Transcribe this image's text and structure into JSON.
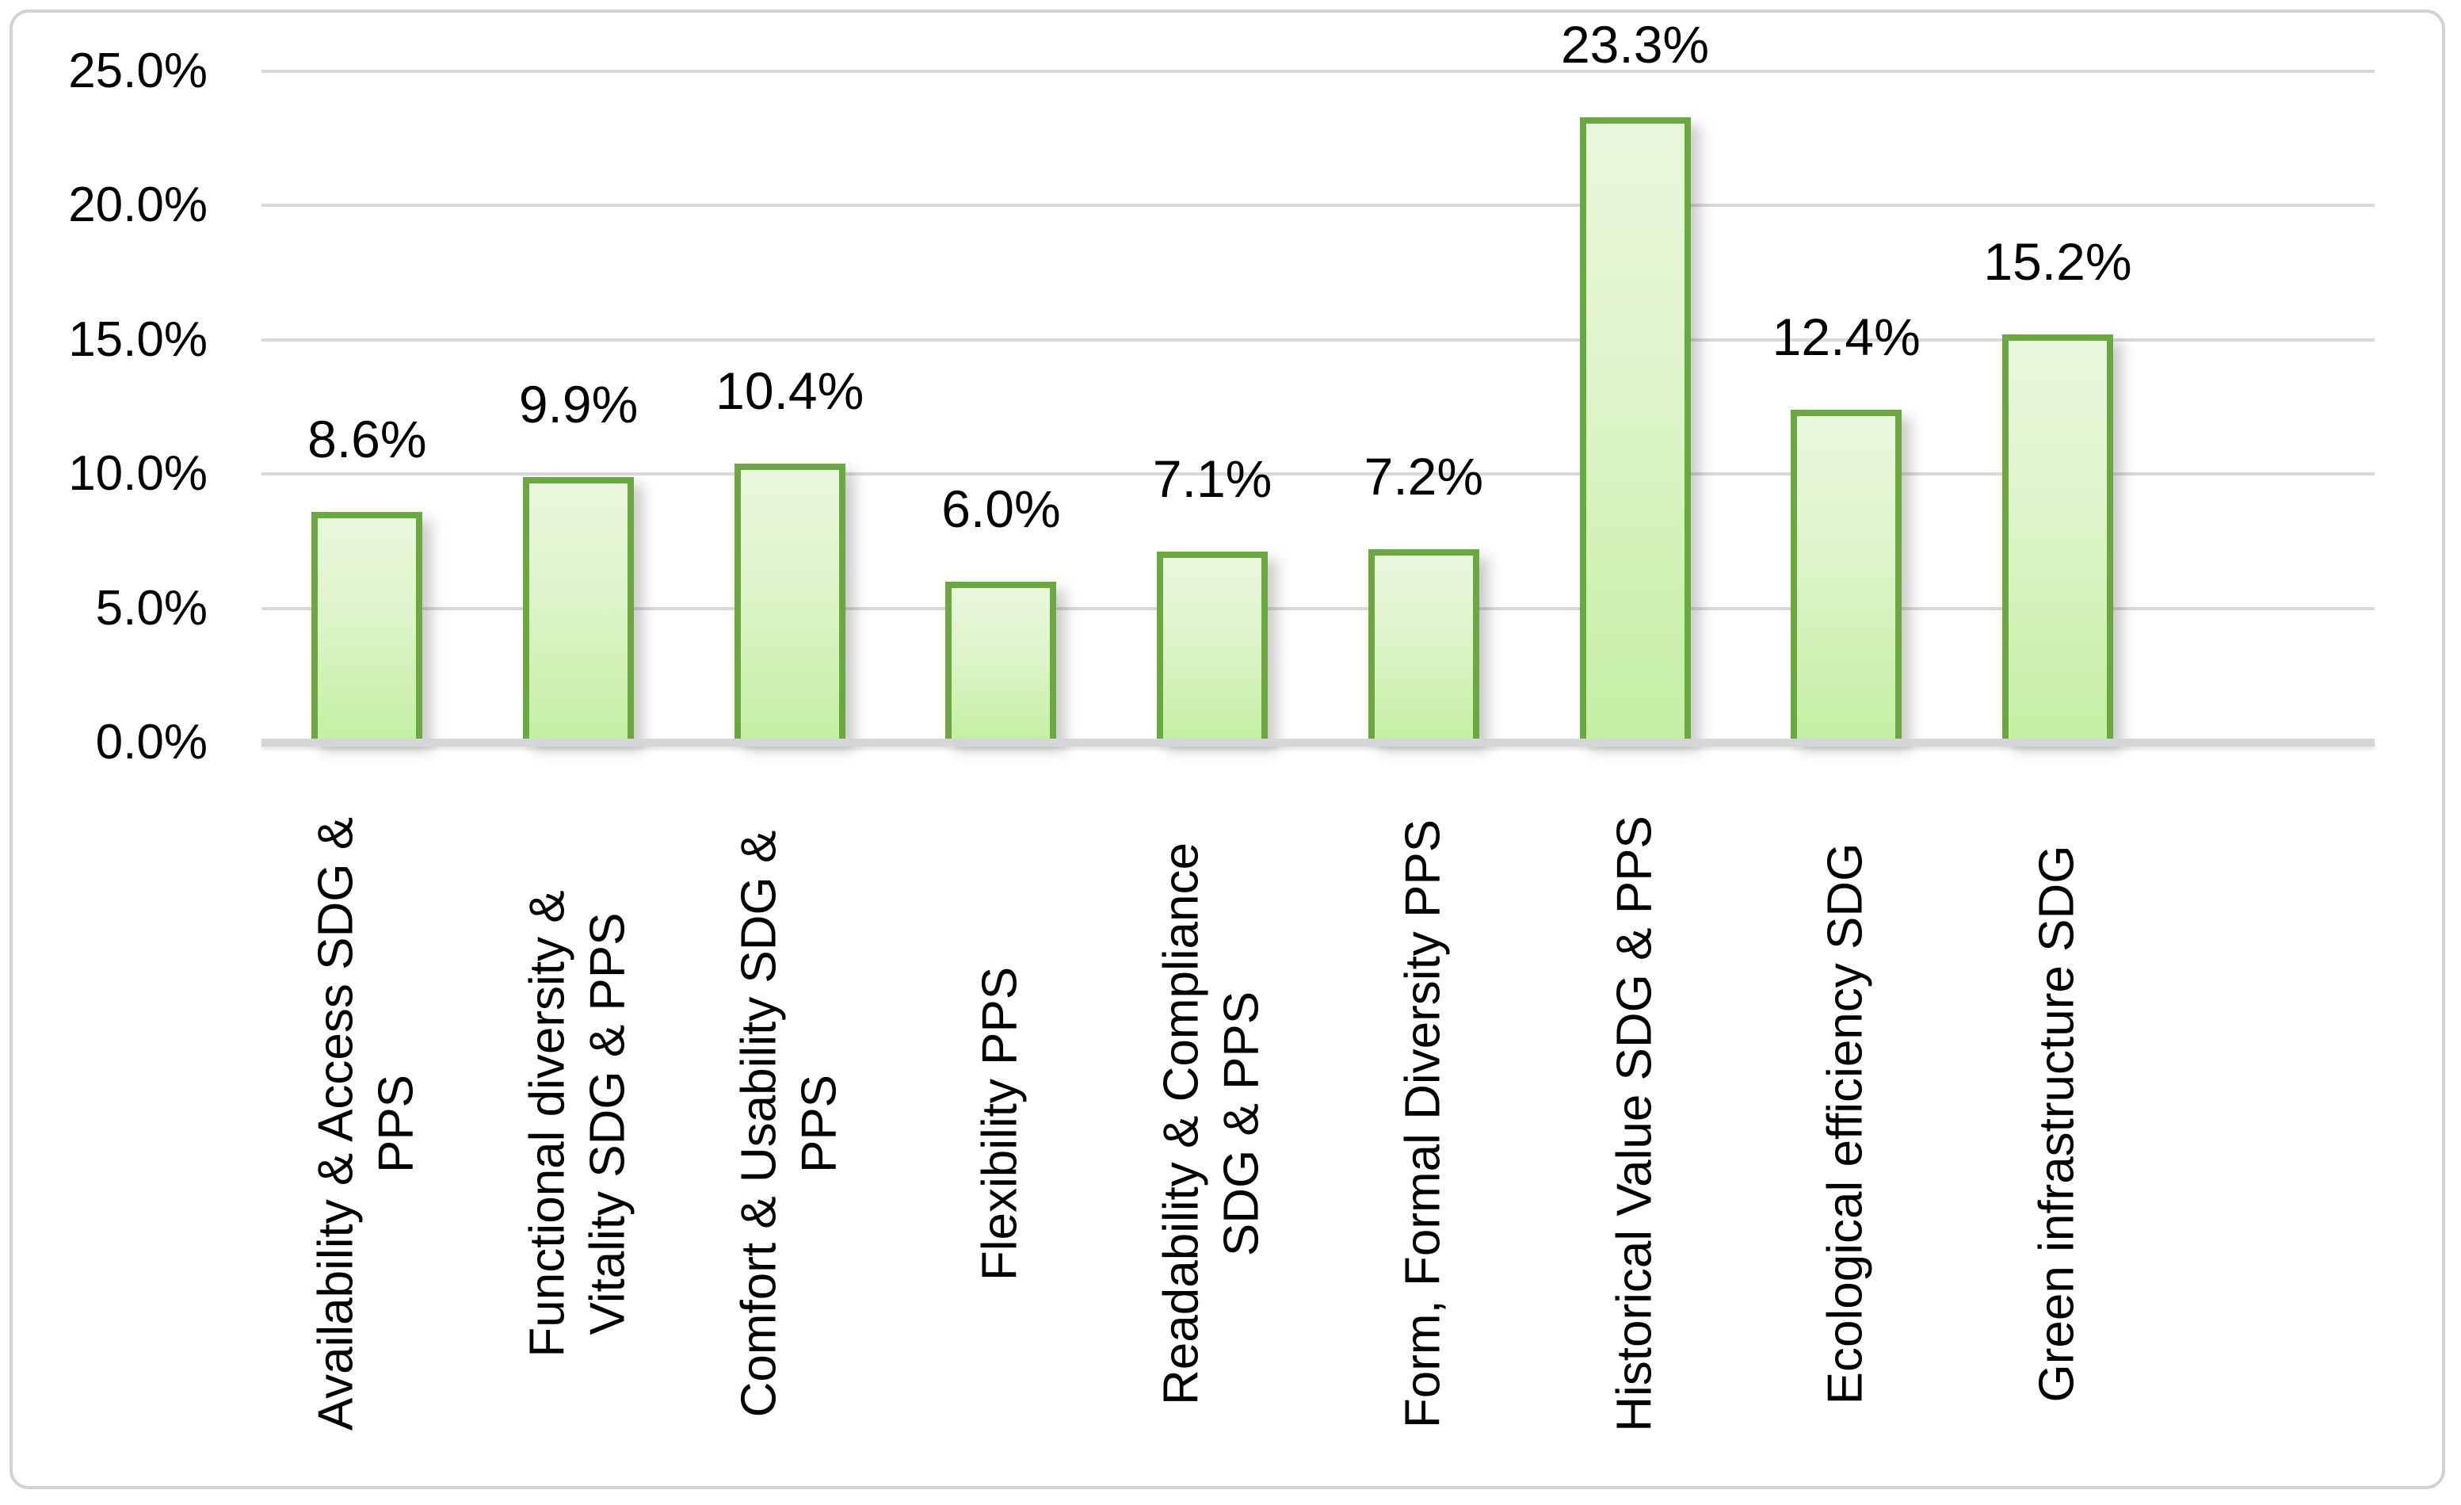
{
  "chart_data": {
    "type": "bar",
    "title": "",
    "xlabel": "",
    "ylabel": "",
    "categories": [
      "Availability & Access SDG & PPS",
      "Functional diversity & Vitality SDG & PPS",
      "Comfort & Usability SDG & PPS",
      "Flexibility PPS",
      "Readability & Compliance SDG & PPS",
      "Form, Formal Diversity PPS",
      "Historical Value SDG & PPS",
      "Ecological efficiency SDG",
      "Green infrastructure SDG"
    ],
    "categories_lines": [
      [
        "Availability & Access SDG &",
        "PPS"
      ],
      [
        "Functional diversity &",
        "Vitality SDG & PPS"
      ],
      [
        "Comfort & Usability SDG &",
        "PPS"
      ],
      [
        "Flexibility PPS"
      ],
      [
        "Readability & Compliance",
        "SDG & PPS"
      ],
      [
        "Form, Formal Diversity PPS"
      ],
      [
        "Historical Value SDG & PPS"
      ],
      [
        "Ecological efficiency SDG"
      ],
      [
        "Green infrastructure SDG"
      ]
    ],
    "values": [
      8.6,
      9.9,
      10.4,
      6.0,
      7.1,
      7.2,
      23.3,
      12.4,
      15.2
    ],
    "value_labels": [
      "8.6%",
      "9.9%",
      "10.4%",
      "6.0%",
      "7.1%",
      "7.2%",
      "23.3%",
      "12.4%",
      "15.2%"
    ],
    "y_axis": {
      "min": 0,
      "max": 25,
      "ticks": [
        {
          "label": "25.0%",
          "value": 25
        },
        {
          "label": "20.0%",
          "value": 20
        },
        {
          "label": "15.0%",
          "value": 15
        },
        {
          "label": "10.0%",
          "value": 10
        },
        {
          "label": "5.0%",
          "value": 5
        },
        {
          "label": "0.0%",
          "value": 0
        }
      ]
    },
    "grid": true,
    "legend": false,
    "colors": {
      "bar_fill_top": "#eaf7dd",
      "bar_fill_bottom": "#c3efa2",
      "bar_border": "#6ca842",
      "gridline": "#d9d9d9",
      "axis_line": "#d6d6d6",
      "frame_border": "#d2d2d2",
      "text": "#000000",
      "background": "#ffffff"
    }
  }
}
